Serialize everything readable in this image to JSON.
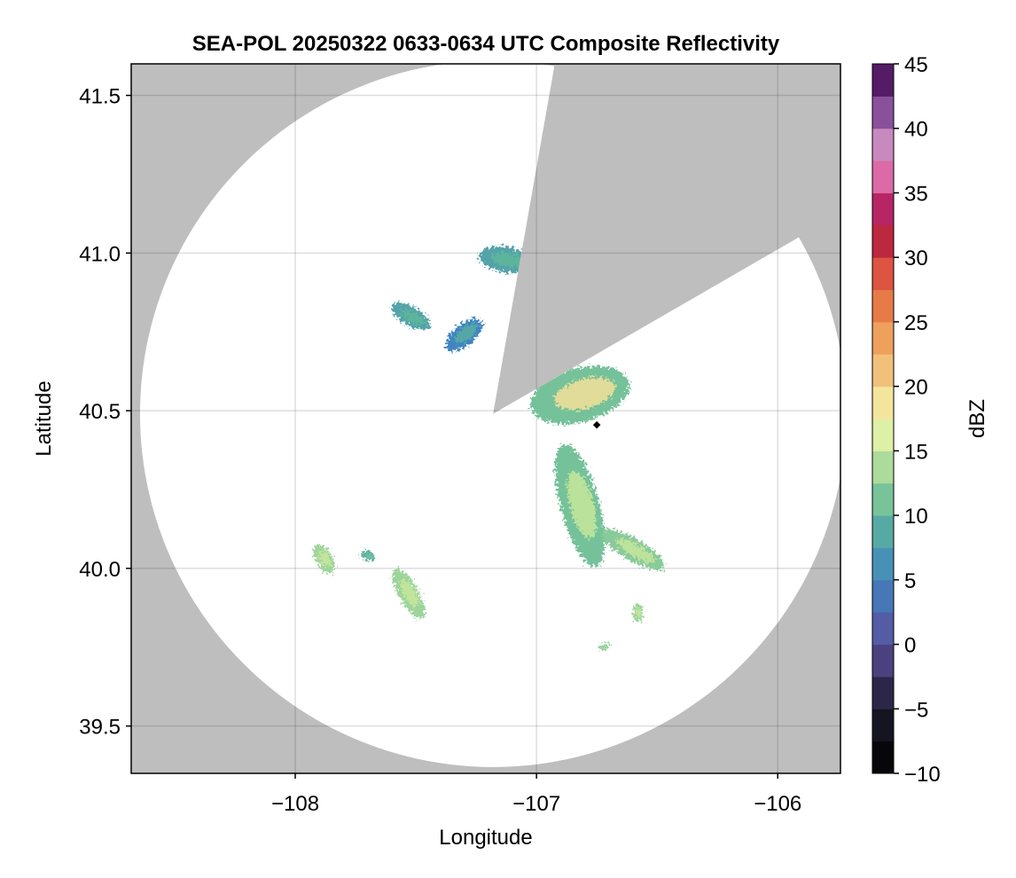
{
  "chart_data": {
    "type": "heatmap",
    "title": "SEA-POL 20250322 0633-0634 UTC Composite Reflectivity",
    "xlabel": "Longitude",
    "ylabel": "Latitude",
    "xlim": [
      -108.68,
      -105.74
    ],
    "ylim": [
      39.35,
      41.6
    ],
    "xticks": [
      -108,
      -107,
      -106
    ],
    "xtick_labels": [
      "−108",
      "−107",
      "−106"
    ],
    "yticks": [
      39.5,
      40.0,
      40.5,
      41.0,
      41.5
    ],
    "ytick_labels": [
      "39.5",
      "40.0",
      "40.5",
      "41.0",
      "41.5"
    ],
    "grid": true,
    "radar": {
      "center_lon": -107.18,
      "center_lat": 40.49,
      "range_lat_deg": 1.12,
      "blocked_sector_azimuth_deg": [
        10,
        60
      ],
      "background_color": "#bebebe",
      "coverage_color": "#ffffff"
    },
    "marker": {
      "lon": -106.75,
      "lat": 40.455,
      "color": "#000000"
    },
    "colorbar": {
      "label": "dBZ",
      "min": -10,
      "max": 45,
      "step": 2.5,
      "ticks": [
        -10,
        -5,
        0,
        5,
        10,
        15,
        20,
        25,
        30,
        35,
        40,
        45
      ],
      "tick_labels": [
        "−10",
        "−5",
        "0",
        "5",
        "10",
        "15",
        "20",
        "25",
        "30",
        "35",
        "40",
        "45"
      ],
      "colormap_stops": [
        {
          "v": -10,
          "c": "#000000"
        },
        {
          "v": -5,
          "c": "#1c1a2c"
        },
        {
          "v": 0,
          "c": "#5a4e9a"
        },
        {
          "v": 5,
          "c": "#3f84c0"
        },
        {
          "v": 10,
          "c": "#5fb79a"
        },
        {
          "v": 15,
          "c": "#c7e79b"
        },
        {
          "v": 17.5,
          "c": "#f5f7b0"
        },
        {
          "v": 20,
          "c": "#f3d28a"
        },
        {
          "v": 25,
          "c": "#ec8f4c"
        },
        {
          "v": 30,
          "c": "#d8403d"
        },
        {
          "v": 32.5,
          "c": "#a0103f"
        },
        {
          "v": 35,
          "c": "#cf3a8a"
        },
        {
          "v": 37.5,
          "c": "#e79ac4"
        },
        {
          "v": 40,
          "c": "#a777b8"
        },
        {
          "v": 42.5,
          "c": "#6a2b7c"
        },
        {
          "v": 45,
          "c": "#3d0a4f"
        }
      ]
    },
    "echoes": [
      {
        "name": "main-cell",
        "lon": -106.82,
        "lat": 40.55,
        "rx": 0.21,
        "ry": 0.085,
        "rot": -15,
        "dbz": 11,
        "peak": 19
      },
      {
        "name": "cell-ne-north",
        "lon": -107.13,
        "lat": 40.98,
        "rx": 0.11,
        "ry": 0.04,
        "rot": 10,
        "dbz": 8,
        "peak": 10
      },
      {
        "name": "cell-north-fragments",
        "lon": -107.3,
        "lat": 40.74,
        "rx": 0.09,
        "ry": 0.035,
        "rot": -40,
        "dbz": 5,
        "peak": 9
      },
      {
        "name": "cell-nw-streak",
        "lon": -107.52,
        "lat": 40.8,
        "rx": 0.09,
        "ry": 0.03,
        "rot": 30,
        "dbz": 8,
        "peak": 10
      },
      {
        "name": "cell-east-band",
        "lon": -106.82,
        "lat": 40.2,
        "rx": 0.08,
        "ry": 0.2,
        "rot": -15,
        "dbz": 11,
        "peak": 15
      },
      {
        "name": "cell-se-band",
        "lon": -106.6,
        "lat": 40.06,
        "rx": 0.15,
        "ry": 0.035,
        "rot": 30,
        "dbz": 12,
        "peak": 15
      },
      {
        "name": "cell-sw-band",
        "lon": -107.53,
        "lat": 39.92,
        "rx": 0.04,
        "ry": 0.09,
        "rot": -30,
        "dbz": 13,
        "peak": 15
      },
      {
        "name": "cell-west",
        "lon": -107.88,
        "lat": 40.03,
        "rx": 0.035,
        "ry": 0.05,
        "rot": -30,
        "dbz": 13,
        "peak": 15
      },
      {
        "name": "cell-west-small",
        "lon": -107.7,
        "lat": 40.04,
        "rx": 0.03,
        "ry": 0.015,
        "rot": 20,
        "dbz": 9,
        "peak": 11
      },
      {
        "name": "cell-small-east",
        "lon": -106.58,
        "lat": 39.86,
        "rx": 0.02,
        "ry": 0.03,
        "rot": 0,
        "dbz": 13,
        "peak": 15
      },
      {
        "name": "cell-small-south",
        "lon": -106.72,
        "lat": 39.75,
        "rx": 0.02,
        "ry": 0.012,
        "rot": 0,
        "dbz": 12,
        "peak": 14
      }
    ]
  }
}
